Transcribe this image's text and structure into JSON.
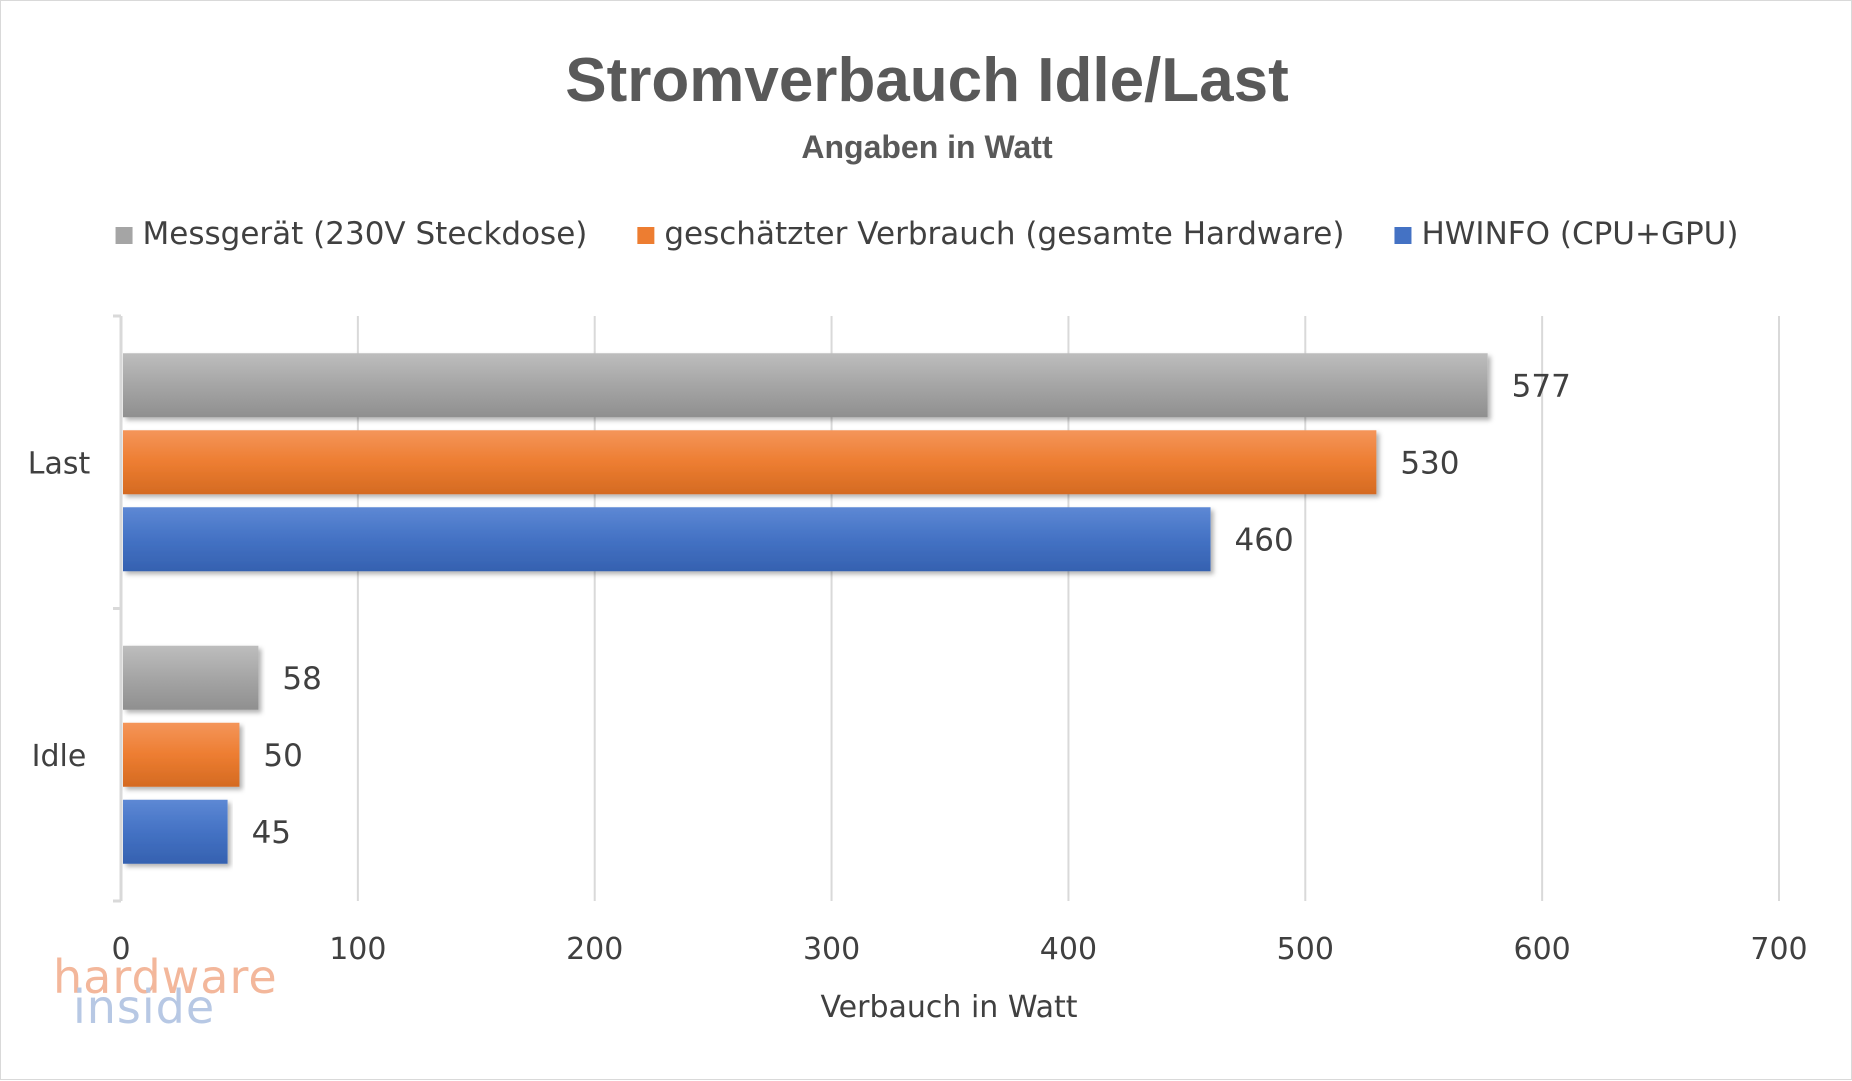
{
  "chart_data": {
    "type": "bar",
    "orientation": "horizontal",
    "title": "Stromverbauch Idle/Last",
    "subtitle": "Angaben in Watt",
    "xlabel": "Verbauch in Watt",
    "ylabel": "",
    "xlim": [
      0,
      700
    ],
    "x_ticks": [
      "0",
      "100",
      "200",
      "300",
      "400",
      "500",
      "600",
      "700"
    ],
    "categories": [
      "Last",
      "Idle"
    ],
    "series": [
      {
        "name": "Messgerät (230V Steckdose)",
        "color": "#a5a5a5",
        "values": [
          577,
          58
        ]
      },
      {
        "name": "geschätzter Verbrauch (gesamte Hardware)",
        "color": "#ed7d31",
        "values": [
          530,
          50
        ]
      },
      {
        "name": "HWINFO (CPU+GPU)",
        "color": "#4472c4",
        "values": [
          460,
          45
        ]
      }
    ],
    "legend_position": "top",
    "grid": true,
    "data_labels": true
  },
  "watermark": {
    "line1": "hardware",
    "line2": "inside"
  }
}
